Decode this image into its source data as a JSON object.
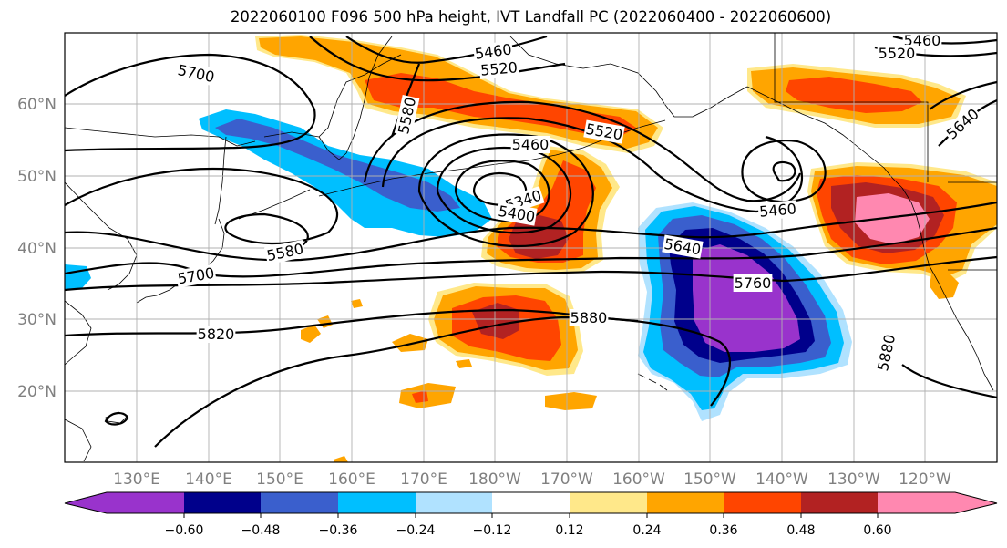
{
  "title": "2022060100 F096 500 hPa height, IVT Landfall PC (2022060400 - 2022060600)",
  "map": {
    "lat_labels": [
      "60°N",
      "50°N",
      "40°N",
      "30°N",
      "20°N"
    ],
    "lon_labels": [
      "130°E",
      "140°E",
      "150°E",
      "160°E",
      "170°E",
      "180°W",
      "170°W",
      "160°W",
      "150°W",
      "140°W",
      "130°W",
      "120°W"
    ],
    "height_contour_labels": [
      "5700",
      "5460",
      "5520",
      "5580",
      "5460",
      "5520",
      "5460",
      "5340",
      "5400",
      "5580",
      "5700",
      "5640",
      "5760",
      "5820",
      "5880",
      "5460",
      "5520",
      "5640",
      "5880"
    ],
    "colors": {
      "neg_060": "#9933cc",
      "neg_048": "#00008b",
      "neg_036": "#3a5fcd",
      "neg_024": "#00bfff",
      "neg_012": "#b0e2ff",
      "neutral": "#ffffff",
      "pos_012": "#ffe88a",
      "pos_024": "#ffa500",
      "pos_036": "#ff4500",
      "pos_048": "#b22222",
      "pos_060": "#ff88b0"
    }
  },
  "colorbar": {
    "ticks": [
      "−0.60",
      "−0.48",
      "−0.36",
      "−0.24",
      "−0.12",
      "0.12",
      "0.24",
      "0.36",
      "0.48",
      "0.60"
    ],
    "colors": [
      "#9933cc",
      "#00008b",
      "#3a5fcd",
      "#00bfff",
      "#b0e2ff",
      "#ffffff",
      "#ffe88a",
      "#ffa500",
      "#ff4500",
      "#b22222",
      "#ff88b0"
    ]
  }
}
